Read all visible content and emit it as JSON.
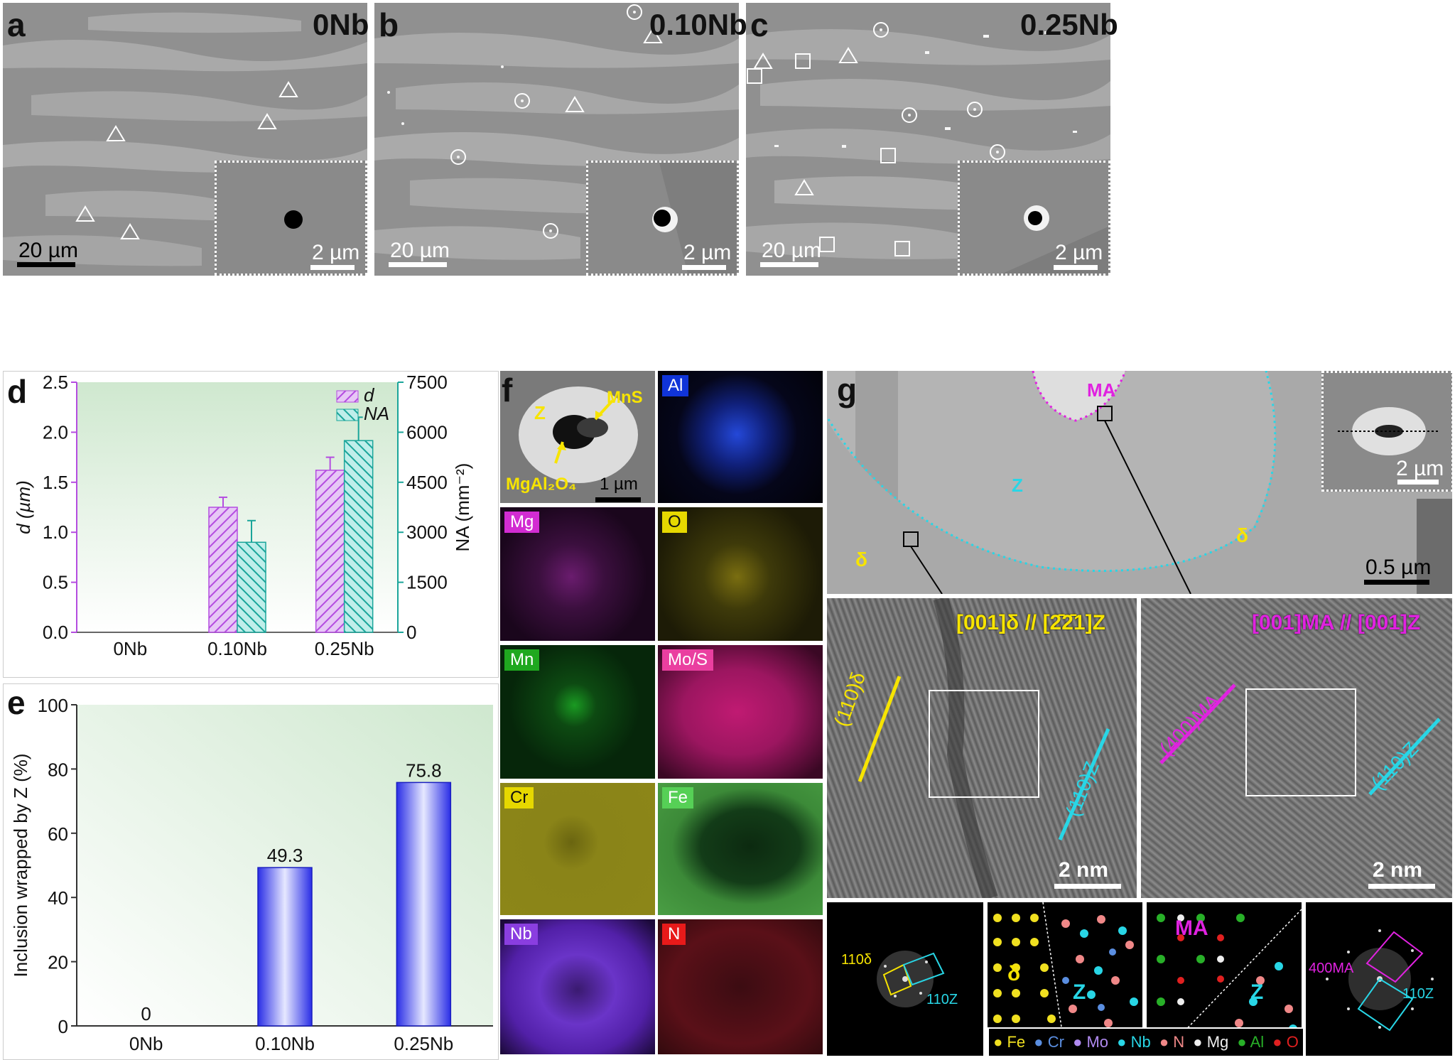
{
  "panels": {
    "a": {
      "letter": "a",
      "title": "0Nb",
      "scale_main": "20 µm",
      "scale_inset": "2 µm"
    },
    "b": {
      "letter": "b",
      "title": "0.10Nb",
      "scale_main": "20 µm",
      "scale_inset": "2 µm"
    },
    "c": {
      "letter": "c",
      "title": "0.25Nb",
      "scale_main": "20 µm",
      "scale_inset": "2 µm"
    },
    "d": {
      "letter": "d"
    },
    "e": {
      "letter": "e"
    },
    "f": {
      "letter": "f",
      "labels": {
        "z": "Z",
        "mns": "MnS",
        "mgal": "MgAl₂O₄",
        "scale": "1 µm"
      },
      "maps": [
        "Al",
        "Mg",
        "O",
        "Mn",
        "Mo/S",
        "Cr",
        "Fe",
        "Nb",
        "N"
      ]
    },
    "g": {
      "letter": "g",
      "labels": {
        "ma": "MA",
        "z": "Z",
        "delta_left": "δ",
        "delta_right": "δ",
        "scale": "0.5 µm",
        "inset_scale": "2 µm"
      },
      "hrtem_left": {
        "orientation": "[001]δ // [2̄2̄1]Z",
        "plane1": "(110)δ",
        "plane2": "(110)Z",
        "scale": "2 nm"
      },
      "hrtem_right": {
        "orientation": "[001]MA // [001]Z",
        "plane1": "(400)MA",
        "plane2": "(110)Z",
        "scale": "2 nm"
      },
      "fft_left": {
        "l1": "110δ",
        "l2": "110Z"
      },
      "atoms_left": {
        "l1": "δ",
        "l2": "Z"
      },
      "atoms_right": {
        "l1": "MA",
        "l2": "Z"
      },
      "fft_right": {
        "l1": "400MA",
        "l2": "110Z"
      },
      "legend": [
        "Fe",
        "Cr",
        "Mo",
        "Nb",
        "N",
        "Mg",
        "Al",
        "O"
      ]
    }
  },
  "chart_data": [
    {
      "type": "bar",
      "panel": "d",
      "categories": [
        "0Nb",
        "0.10Nb",
        "0.25Nb"
      ],
      "series": [
        {
          "name": "d",
          "values": [
            0,
            1.25,
            1.62
          ],
          "errors": [
            0,
            0.1,
            0.13
          ],
          "axis": "left",
          "color": "#b44ce0"
        },
        {
          "name": "NA",
          "values": [
            0,
            2700,
            5750
          ],
          "errors": [
            0,
            650,
            700
          ],
          "axis": "right",
          "color": "#1aa59a"
        }
      ],
      "ylabel": "d (µm)",
      "ylabel_right": "NA (mm⁻²)",
      "ylim": [
        0,
        2.5
      ],
      "ylim_right": [
        0,
        7500
      ],
      "yticks": [
        "0.0",
        "0.5",
        "1.0",
        "1.5",
        "2.0",
        "2.5"
      ],
      "yticks_right": [
        "0",
        "1500",
        "3000",
        "4500",
        "6000",
        "7500"
      ],
      "legend_position": "top-right"
    },
    {
      "type": "bar",
      "panel": "e",
      "categories": [
        "0Nb",
        "0.10Nb",
        "0.25Nb"
      ],
      "values": [
        0,
        49.3,
        75.8
      ],
      "data_labels": [
        "0",
        "49.3",
        "75.8"
      ],
      "ylabel": "Inclusion wrapped by Z (%)",
      "ylim": [
        0,
        100
      ],
      "yticks": [
        "0",
        "20",
        "40",
        "60",
        "80",
        "100"
      ]
    }
  ]
}
